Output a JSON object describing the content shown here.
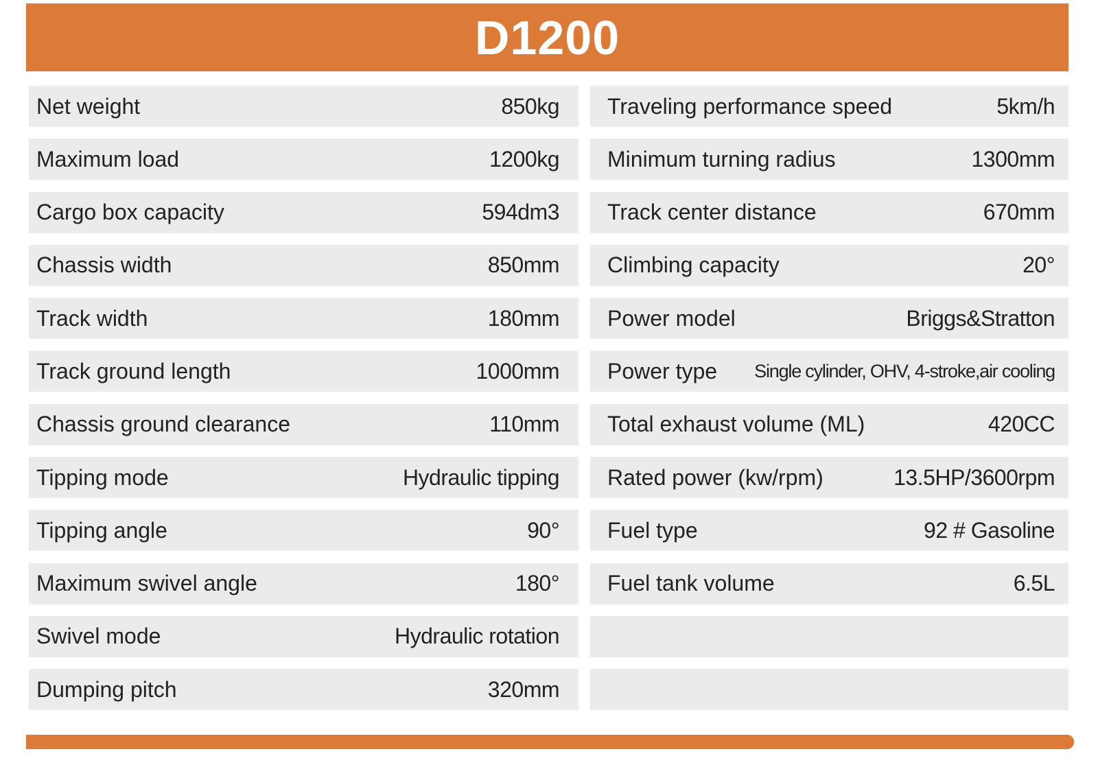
{
  "title": "D1200",
  "colors": {
    "accent": "#dc7b37",
    "row_bg": "#ebebeb"
  },
  "left": [
    {
      "label": "Net weight",
      "value": "850kg"
    },
    {
      "label": "Maximum load",
      "value": "1200kg"
    },
    {
      "label": "Cargo box capacity",
      "value": "594dm3"
    },
    {
      "label": "Chassis width",
      "value": "850mm"
    },
    {
      "label": "Track width",
      "value": "180mm"
    },
    {
      "label": "Track ground length",
      "value": "1000mm"
    },
    {
      "label": "Chassis ground clearance",
      "value": "110mm"
    },
    {
      "label": "Tipping mode",
      "value": "Hydraulic tipping"
    },
    {
      "label": "Tipping angle",
      "value": "90°"
    },
    {
      "label": "Maximum swivel angle",
      "value": "180°"
    },
    {
      "label": "Swivel mode",
      "value": "Hydraulic rotation"
    },
    {
      "label": "Dumping pitch",
      "value": "320mm"
    }
  ],
  "right": [
    {
      "label": "Traveling performance speed",
      "value": "5km/h"
    },
    {
      "label": "Minimum turning radius",
      "value": "1300mm"
    },
    {
      "label": "Track center distance",
      "value": "670mm"
    },
    {
      "label": "Climbing capacity",
      "value": "20°"
    },
    {
      "label": "Power model",
      "value": "Briggs&Stratton"
    },
    {
      "label": "Power type",
      "value": "Single cylinder, OHV, 4-stroke,air cooling"
    },
    {
      "label": "Total exhaust volume (ML)",
      "value": "420CC"
    },
    {
      "label": "Rated power (kw/rpm)",
      "value": "13.5HP/3600rpm"
    },
    {
      "label": "Fuel type",
      "value": "92 # Gasoline"
    },
    {
      "label": "Fuel tank volume",
      "value": "6.5L"
    },
    {
      "label": "",
      "value": ""
    },
    {
      "label": "",
      "value": ""
    }
  ]
}
